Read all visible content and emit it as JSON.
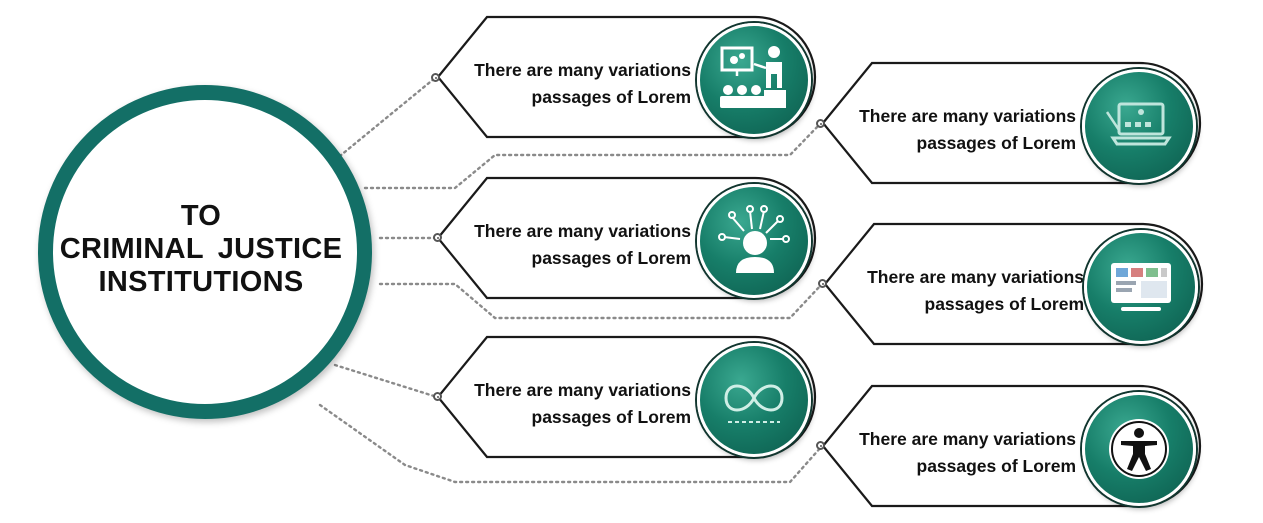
{
  "hub": {
    "lines": [
      "TO",
      "CRIMINAL JUSTICE",
      "INSTITUTIONS"
    ]
  },
  "cards": [
    {
      "line1": "There are many variations",
      "line2": "passages  of Lorem",
      "icon": "presentation-icon"
    },
    {
      "line1": "There are many variations",
      "line2": "passages  of Lorem",
      "icon": "laptop-icon"
    },
    {
      "line1": "There are many variations",
      "line2": "passages  of Lorem",
      "icon": "person-network-icon"
    },
    {
      "line1": "There are many variations",
      "line2": "passages  of Lorem",
      "icon": "dashboard-screen-icon"
    },
    {
      "line1": "There are many variations",
      "line2": "passages  of Lorem",
      "icon": "infinity-icon"
    },
    {
      "line1": "There are many variations",
      "line2": "passages  of Lorem",
      "icon": "accessibility-icon"
    }
  ],
  "colors": {
    "accent": "#136f66",
    "icon_fill": "#177e69",
    "outline": "#1a1a1a",
    "connector": "#8a8a8a",
    "text": "#111111"
  }
}
